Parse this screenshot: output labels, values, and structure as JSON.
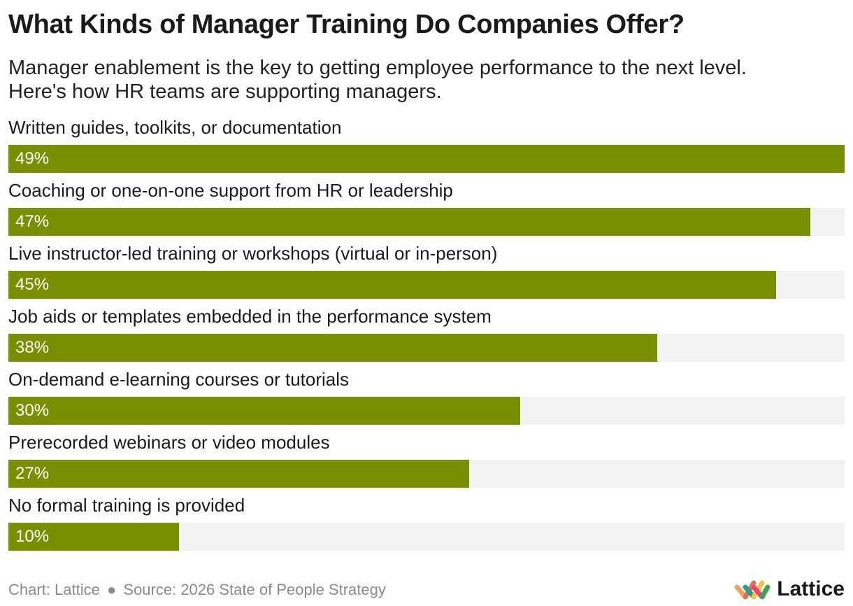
{
  "chart_data": {
    "type": "bar",
    "orientation": "horizontal",
    "title": "What Kinds of Manager Training Do Companies Offer?",
    "subtitle_lines": [
      "Manager enablement is the key to getting employee performance to the next level.",
      "Here's how HR teams are supporting managers."
    ],
    "categories": [
      "Written guides, toolkits, or documentation",
      "Coaching or one-on-one support from HR or leadership",
      "Live instructor-led training or workshops (virtual or in-person)",
      "Job aids or templates embedded in the performance system",
      "On-demand e-learning courses or tutorials",
      "Prerecorded webinars or video modules",
      "No formal training is provided"
    ],
    "values": [
      49,
      47,
      45,
      38,
      30,
      27,
      10
    ],
    "value_labels": [
      "49%",
      "47%",
      "45%",
      "38%",
      "30%",
      "27%",
      "10%"
    ],
    "xlim": [
      0,
      49
    ],
    "colors": {
      "bar": "#7a8f00",
      "track": "#f2f2f2"
    }
  },
  "footer": {
    "chart_credit": "Chart: Lattice",
    "separator": "●",
    "source": "Source: 2026 State of People Strategy"
  },
  "logo": {
    "text": "Lattice",
    "icon": "lattice-logo-icon"
  }
}
